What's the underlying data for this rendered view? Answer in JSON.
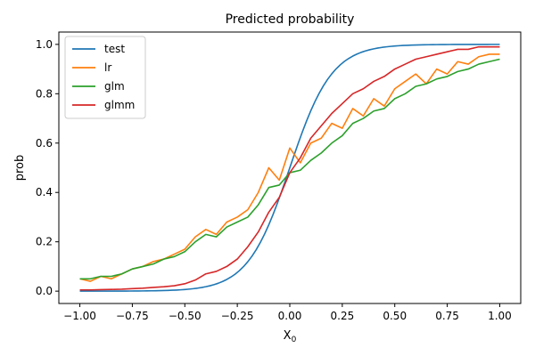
{
  "chart_data": {
    "type": "line",
    "title": "Predicted probability",
    "xlabel": "X",
    "xlabel_sub": "0",
    "ylabel": "prob",
    "xlim": [
      -1.1,
      1.1
    ],
    "ylim": [
      -0.05,
      1.05
    ],
    "x_ticks": [
      -1.0,
      -0.75,
      -0.5,
      -0.25,
      0.0,
      0.25,
      0.5,
      0.75,
      1.0
    ],
    "x_tick_labels": [
      "−1.00",
      "−0.75",
      "−0.50",
      "−0.25",
      "0.00",
      "0.25",
      "0.50",
      "0.75",
      "1.00"
    ],
    "y_ticks": [
      0.0,
      0.2,
      0.4,
      0.6,
      0.8,
      1.0
    ],
    "y_tick_labels": [
      "0.0",
      "0.2",
      "0.4",
      "0.6",
      "0.8",
      "1.0"
    ],
    "grid": false,
    "legend_position": "top-left",
    "series": [
      {
        "name": "test",
        "color": "#1f77b4",
        "style": "sigmoid",
        "k": 10,
        "x_range": [
          -1.0,
          1.0
        ],
        "points": 101
      },
      {
        "name": "lr",
        "color": "#ff7f0e",
        "x": [
          -1.0,
          -0.95,
          -0.9,
          -0.85,
          -0.8,
          -0.75,
          -0.7,
          -0.65,
          -0.6,
          -0.55,
          -0.5,
          -0.45,
          -0.4,
          -0.35,
          -0.3,
          -0.25,
          -0.2,
          -0.15,
          -0.1,
          -0.05,
          0.0,
          0.05,
          0.1,
          0.15,
          0.2,
          0.25,
          0.3,
          0.35,
          0.4,
          0.45,
          0.5,
          0.55,
          0.6,
          0.65,
          0.7,
          0.75,
          0.8,
          0.85,
          0.9,
          0.95,
          1.0
        ],
        "y": [
          0.05,
          0.04,
          0.06,
          0.05,
          0.07,
          0.09,
          0.1,
          0.12,
          0.13,
          0.15,
          0.17,
          0.22,
          0.25,
          0.23,
          0.28,
          0.3,
          0.33,
          0.4,
          0.5,
          0.45,
          0.58,
          0.52,
          0.6,
          0.62,
          0.68,
          0.66,
          0.74,
          0.71,
          0.78,
          0.75,
          0.82,
          0.85,
          0.88,
          0.84,
          0.9,
          0.88,
          0.93,
          0.92,
          0.95,
          0.96,
          0.96
        ]
      },
      {
        "name": "glm",
        "color": "#2ca02c",
        "x": [
          -1.0,
          -0.95,
          -0.9,
          -0.85,
          -0.8,
          -0.75,
          -0.7,
          -0.65,
          -0.6,
          -0.55,
          -0.5,
          -0.45,
          -0.4,
          -0.35,
          -0.3,
          -0.25,
          -0.2,
          -0.15,
          -0.1,
          -0.05,
          0.0,
          0.05,
          0.1,
          0.15,
          0.2,
          0.25,
          0.3,
          0.35,
          0.4,
          0.45,
          0.5,
          0.55,
          0.6,
          0.65,
          0.7,
          0.75,
          0.8,
          0.85,
          0.9,
          0.95,
          1.0
        ],
        "y": [
          0.05,
          0.05,
          0.06,
          0.06,
          0.07,
          0.09,
          0.1,
          0.11,
          0.13,
          0.14,
          0.16,
          0.2,
          0.23,
          0.22,
          0.26,
          0.28,
          0.3,
          0.35,
          0.42,
          0.43,
          0.48,
          0.49,
          0.53,
          0.56,
          0.6,
          0.63,
          0.68,
          0.7,
          0.73,
          0.74,
          0.78,
          0.8,
          0.83,
          0.84,
          0.86,
          0.87,
          0.89,
          0.9,
          0.92,
          0.93,
          0.94
        ]
      },
      {
        "name": "glmm",
        "color": "#d62728",
        "x": [
          -1.0,
          -0.95,
          -0.9,
          -0.85,
          -0.8,
          -0.75,
          -0.7,
          -0.65,
          -0.6,
          -0.55,
          -0.5,
          -0.45,
          -0.4,
          -0.35,
          -0.3,
          -0.25,
          -0.2,
          -0.15,
          -0.1,
          -0.05,
          0.0,
          0.05,
          0.1,
          0.15,
          0.2,
          0.25,
          0.3,
          0.35,
          0.4,
          0.45,
          0.5,
          0.55,
          0.6,
          0.65,
          0.7,
          0.75,
          0.8,
          0.85,
          0.9,
          0.95,
          1.0
        ],
        "y": [
          0.005,
          0.005,
          0.006,
          0.007,
          0.008,
          0.01,
          0.012,
          0.015,
          0.018,
          0.022,
          0.03,
          0.045,
          0.07,
          0.08,
          0.1,
          0.13,
          0.18,
          0.24,
          0.32,
          0.38,
          0.48,
          0.54,
          0.62,
          0.67,
          0.72,
          0.76,
          0.8,
          0.82,
          0.85,
          0.87,
          0.9,
          0.92,
          0.94,
          0.95,
          0.96,
          0.97,
          0.98,
          0.98,
          0.99,
          0.99,
          0.99
        ]
      }
    ]
  }
}
